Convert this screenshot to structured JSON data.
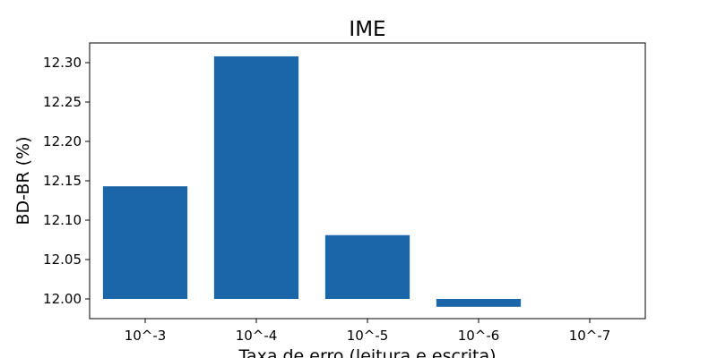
{
  "chart_data": {
    "type": "bar",
    "title": "IME",
    "xlabel": "Taxa de erro (leitura e escrita)",
    "ylabel": "BD-BR (%)",
    "categories": [
      "10^-3",
      "10^-4",
      "10^-5",
      "10^-6",
      "10^-7"
    ],
    "values": [
      12.143,
      12.308,
      12.081,
      11.99,
      12.0
    ],
    "baseline": 12.0,
    "ylim": [
      11.975,
      12.325
    ],
    "yticks": [
      "12.00",
      "12.05",
      "12.10",
      "12.15",
      "12.20",
      "12.25",
      "12.30"
    ],
    "grid": false,
    "bar_color": "#1b66a8"
  }
}
